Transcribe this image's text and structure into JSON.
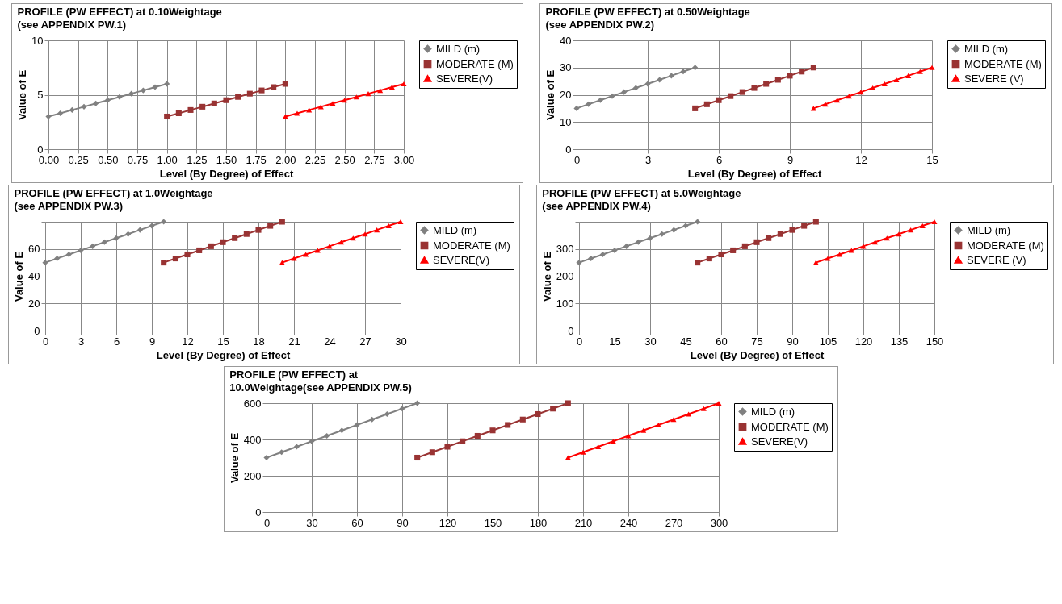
{
  "chart_data": [
    {
      "type": "line",
      "title": "PROFILE (PW EFFECT) at 0.10Weightage",
      "subtitle": "(see APPENDIX PW.1)",
      "xlabel": "Level (By Degree) of Effect",
      "ylabel": "Value of E",
      "grid": true,
      "legend": "top right",
      "xlim": [
        0,
        3
      ],
      "xticks": [
        {
          "value": 0,
          "label": "0.00"
        },
        {
          "value": 0.25,
          "label": "0.25"
        },
        {
          "value": 0.5,
          "label": "0.50"
        },
        {
          "value": 0.75,
          "label": "0.75"
        },
        {
          "value": 1,
          "label": "1.00"
        },
        {
          "value": 1.25,
          "label": "1.25"
        },
        {
          "value": 1.5,
          "label": "1.50"
        },
        {
          "value": 1.75,
          "label": "1.75"
        },
        {
          "value": 2,
          "label": "2.00"
        },
        {
          "value": 2.25,
          "label": "2.25"
        },
        {
          "value": 2.5,
          "label": "2.50"
        },
        {
          "value": 2.75,
          "label": "2.75"
        },
        {
          "value": 3,
          "label": "3.00"
        }
      ],
      "ylim": [
        0,
        10
      ],
      "yticks": [
        0,
        5,
        10
      ],
      "series": [
        {
          "name": "MILD (m)",
          "color": "#808080",
          "marker": "diamond",
          "x": [
            0,
            0.1,
            0.2,
            0.3,
            0.4,
            0.5,
            0.6,
            0.7,
            0.8,
            0.9,
            1.0
          ],
          "values": [
            3,
            3.3,
            3.6,
            3.9,
            4.2,
            4.5,
            4.8,
            5.1,
            5.4,
            5.7,
            6
          ]
        },
        {
          "name": "MODERATE (M)",
          "color": "#993333",
          "marker": "square",
          "x": [
            1.0,
            1.1,
            1.2,
            1.3,
            1.4,
            1.5,
            1.6,
            1.7,
            1.8,
            1.9,
            2.0
          ],
          "values": [
            3,
            3.3,
            3.6,
            3.9,
            4.2,
            4.5,
            4.8,
            5.1,
            5.4,
            5.7,
            6
          ]
        },
        {
          "name": "SEVERE(V)",
          "color": "#ff0000",
          "marker": "triangle",
          "x": [
            2.0,
            2.1,
            2.2,
            2.3,
            2.4,
            2.5,
            2.6,
            2.7,
            2.8,
            2.9,
            3.0
          ],
          "values": [
            3,
            3.3,
            3.6,
            3.9,
            4.2,
            4.5,
            4.8,
            5.1,
            5.4,
            5.7,
            6
          ]
        }
      ]
    },
    {
      "type": "line",
      "title": "PROFILE (PW EFFECT) at 0.50Weightage",
      "subtitle": "(see APPENDIX PW.2)",
      "xlabel": "Level (By Degree) of Effect",
      "ylabel": "Value of E",
      "grid": true,
      "legend": "top right",
      "xlim": [
        0,
        15
      ],
      "xticks": [
        0,
        3,
        6,
        9,
        12,
        15
      ],
      "ylim": [
        0,
        40
      ],
      "yticks": [
        0,
        10,
        20,
        30,
        40
      ],
      "series": [
        {
          "name": "MILD (m)",
          "color": "#808080",
          "marker": "diamond",
          "x": [
            0,
            0.5,
            1,
            1.5,
            2,
            2.5,
            3,
            3.5,
            4,
            4.5,
            5
          ],
          "values": [
            15,
            16.5,
            18,
            19.5,
            21,
            22.5,
            24,
            25.5,
            27,
            28.5,
            30
          ]
        },
        {
          "name": "MODERATE (M)",
          "color": "#993333",
          "marker": "square",
          "x": [
            5,
            5.5,
            6,
            6.5,
            7,
            7.5,
            8,
            8.5,
            9,
            9.5,
            10
          ],
          "values": [
            15,
            16.5,
            18,
            19.5,
            21,
            22.5,
            24,
            25.5,
            27,
            28.5,
            30
          ]
        },
        {
          "name": "SEVERE (V)",
          "color": "#ff0000",
          "marker": "triangle",
          "x": [
            10,
            10.5,
            11,
            11.5,
            12,
            12.5,
            13,
            13.5,
            14,
            14.5,
            15
          ],
          "values": [
            15,
            16.5,
            18,
            19.5,
            21,
            22.5,
            24,
            25.5,
            27,
            28.5,
            30
          ]
        }
      ]
    },
    {
      "type": "line",
      "title": "PROFILE (PW EFFECT) at 1.0Weightage",
      "subtitle": "(see APPENDIX PW.3)",
      "xlabel": "Level (By Degree) of Effect",
      "ylabel": "Value of E",
      "grid": true,
      "legend": "top right",
      "xlim": [
        0,
        30
      ],
      "xticks": [
        0,
        3,
        6,
        9,
        12,
        15,
        18,
        21,
        24,
        27,
        30
      ],
      "ylim": [
        0,
        80
      ],
      "yticks": [
        0,
        20,
        40,
        60,
        {
          "value": 80,
          "label": null
        }
      ],
      "series": [
        {
          "name": "MILD (m)",
          "color": "#808080",
          "marker": "diamond",
          "x": [
            0,
            1,
            2,
            3,
            4,
            5,
            6,
            7,
            8,
            9,
            10
          ],
          "values": [
            50,
            53,
            56,
            59,
            62,
            65,
            68,
            71,
            74,
            77,
            80
          ]
        },
        {
          "name": "MODERATE (M)",
          "color": "#993333",
          "marker": "square",
          "x": [
            10,
            11,
            12,
            13,
            14,
            15,
            16,
            17,
            18,
            19,
            20
          ],
          "values": [
            50,
            53,
            56,
            59,
            62,
            65,
            68,
            71,
            74,
            77,
            80
          ]
        },
        {
          "name": "SEVERE(V)",
          "color": "#ff0000",
          "marker": "triangle",
          "x": [
            20,
            21,
            22,
            23,
            24,
            25,
            26,
            27,
            28,
            29,
            30
          ],
          "values": [
            50,
            53,
            56,
            59,
            62,
            65,
            68,
            71,
            74,
            77,
            80
          ]
        }
      ]
    },
    {
      "type": "line",
      "title": "PROFILE (PW EFFECT) at 5.0Weightage",
      "subtitle": "(see APPENDIX PW.4)",
      "xlabel": "Level (By Degree) of Effect",
      "ylabel": "Value of E",
      "grid": true,
      "legend": "top right",
      "xlim": [
        0,
        150
      ],
      "xticks": [
        0,
        15,
        30,
        45,
        60,
        75,
        90,
        105,
        120,
        135,
        150
      ],
      "ylim": [
        0,
        400
      ],
      "yticks": [
        0,
        100,
        200,
        300,
        {
          "value": 400,
          "label": null
        }
      ],
      "series": [
        {
          "name": "MILD (m)",
          "color": "#808080",
          "marker": "diamond",
          "x": [
            0,
            5,
            10,
            15,
            20,
            25,
            30,
            35,
            40,
            45,
            50
          ],
          "values": [
            250,
            265,
            280,
            295,
            310,
            325,
            340,
            355,
            370,
            385,
            400
          ]
        },
        {
          "name": "MODERATE (M)",
          "color": "#993333",
          "marker": "square",
          "x": [
            50,
            55,
            60,
            65,
            70,
            75,
            80,
            85,
            90,
            95,
            100
          ],
          "values": [
            250,
            265,
            280,
            295,
            310,
            325,
            340,
            355,
            370,
            385,
            400
          ]
        },
        {
          "name": "SEVERE (V)",
          "color": "#ff0000",
          "marker": "triangle",
          "x": [
            100,
            105,
            110,
            115,
            120,
            125,
            130,
            135,
            140,
            145,
            150
          ],
          "values": [
            250,
            265,
            280,
            295,
            310,
            325,
            340,
            355,
            370,
            385,
            400
          ]
        }
      ]
    },
    {
      "type": "line",
      "title": "PROFILE (PW EFFECT) at",
      "subtitle": "10.0Weightage(see APPENDIX PW.5)",
      "ylabel": "Value of E",
      "grid": true,
      "legend": "top right",
      "xlim": [
        0,
        300
      ],
      "xticks": [
        0,
        30,
        60,
        90,
        120,
        150,
        180,
        210,
        240,
        270,
        300
      ],
      "ylim": [
        0,
        600
      ],
      "yticks": [
        0,
        200,
        400,
        600
      ],
      "series": [
        {
          "name": "MILD (m)",
          "color": "#808080",
          "marker": "diamond",
          "x": [
            0,
            10,
            20,
            30,
            40,
            50,
            60,
            70,
            80,
            90,
            100
          ],
          "values": [
            300,
            330,
            360,
            390,
            420,
            450,
            480,
            510,
            540,
            570,
            600
          ]
        },
        {
          "name": "MODERATE (M)",
          "color": "#993333",
          "marker": "square",
          "x": [
            100,
            110,
            120,
            130,
            140,
            150,
            160,
            170,
            180,
            190,
            200
          ],
          "values": [
            300,
            330,
            360,
            390,
            420,
            450,
            480,
            510,
            540,
            570,
            600
          ]
        },
        {
          "name": "SEVERE(V)",
          "color": "#ff0000",
          "marker": "triangle",
          "x": [
            200,
            210,
            220,
            230,
            240,
            250,
            260,
            270,
            280,
            290,
            300
          ],
          "values": [
            300,
            330,
            360,
            390,
            420,
            450,
            480,
            510,
            540,
            570,
            600
          ]
        }
      ]
    }
  ]
}
